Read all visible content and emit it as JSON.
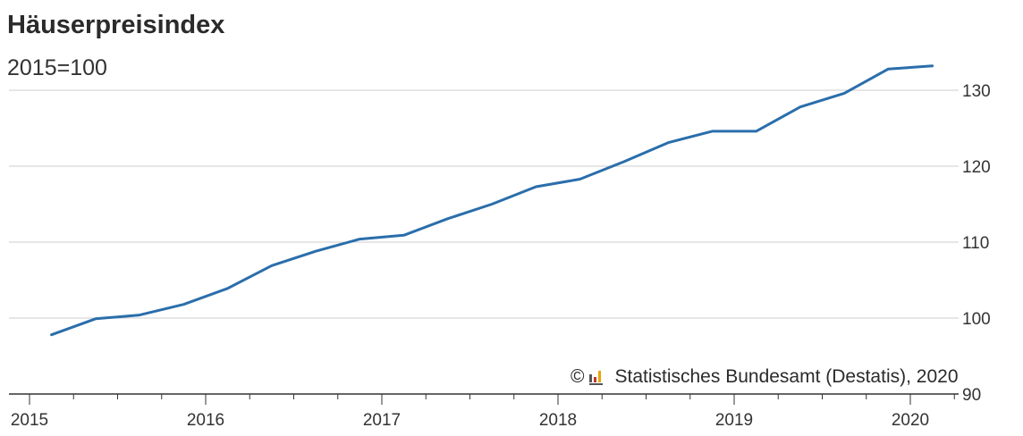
{
  "header": {
    "title": "Häuserpreisindex",
    "subtitle": "2015=100"
  },
  "source": {
    "copyright_symbol": "©",
    "logo_icon": "destatis-logo-icon",
    "text": "Statistisches Bundesamt (Destatis), 2020"
  },
  "colors": {
    "line": "#2a6eab",
    "grid": "#cccccc",
    "axis": "#333333"
  },
  "chart_data": {
    "type": "line",
    "title": "Häuserpreisindex",
    "subtitle": "2015=100",
    "xlabel": "",
    "ylabel": "",
    "x_tick_labels": [
      "2015",
      "2016",
      "2017",
      "2018",
      "2019",
      "2020"
    ],
    "y_tick_labels": [
      "90",
      "100",
      "110",
      "120",
      "130"
    ],
    "ylim": [
      90,
      135
    ],
    "y_axis_side": "right",
    "grid": "horizontal",
    "x": [
      "2015-Q1",
      "2015-Q2",
      "2015-Q3",
      "2015-Q4",
      "2016-Q1",
      "2016-Q2",
      "2016-Q3",
      "2016-Q4",
      "2017-Q1",
      "2017-Q2",
      "2017-Q3",
      "2017-Q4",
      "2018-Q1",
      "2018-Q2",
      "2018-Q3",
      "2018-Q4",
      "2019-Q1",
      "2019-Q2",
      "2019-Q3",
      "2019-Q4",
      "2020-Q1"
    ],
    "series": [
      {
        "values": [
          97.8,
          99.9,
          100.4,
          101.8,
          103.9,
          106.9,
          108.8,
          110.4,
          110.9,
          113.1,
          115.0,
          117.3,
          118.3,
          120.6,
          123.1,
          124.6,
          124.6,
          127.8,
          129.6,
          132.8,
          133.2
        ]
      }
    ]
  }
}
